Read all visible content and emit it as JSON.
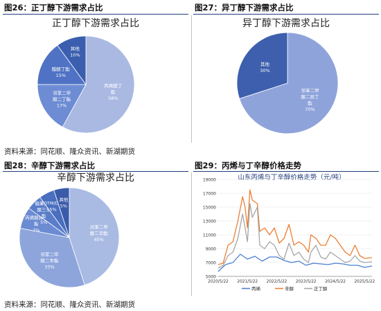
{
  "figures": [
    {
      "label": "图26：正丁醇下游需求占比"
    },
    {
      "label": "图27：异丁醇下游需求占比"
    },
    {
      "label": "图28：辛醇下游需求占比"
    },
    {
      "label": "图29：丙烯与丁辛醇价格走势"
    }
  ],
  "sources": [
    "资料来源：同花顺、隆众资讯、新湖期货",
    "资料来源：同花顺、隆众资讯、新湖期货"
  ],
  "chart_data": [
    {
      "type": "pie",
      "title": "正丁醇下游需求占比",
      "slices": [
        {
          "label": [
            "丙烯酸丁",
            "酯"
          ],
          "value": 58,
          "color": "#a9b9e2"
        },
        {
          "label": [
            "邻苯二甲",
            "酸二丁酯"
          ],
          "value": 17,
          "color": "#6d8cd4"
        },
        {
          "label": [
            "醋酸丁酯"
          ],
          "value": 15,
          "color": "#4f72c4"
        },
        {
          "label": [
            "其他"
          ],
          "value": 10,
          "color": "#3b5fae"
        }
      ]
    },
    {
      "type": "pie",
      "title": "异丁醇下游需求占比",
      "slices": [
        {
          "label": [
            "邻苯二甲",
            "酸二异丁",
            "酯"
          ],
          "value": 70,
          "color": "#8fa3db"
        },
        {
          "label": [
            "其他"
          ],
          "value": 30,
          "color": "#3d5fad"
        }
      ]
    },
    {
      "type": "pie",
      "title": "辛醇下游需求占比",
      "slices": [
        {
          "label": [
            "对苯二甲",
            "酸二辛酯"
          ],
          "value": 45,
          "color": "#aabbe3"
        },
        {
          "label": [
            "邻苯二甲",
            "酸二辛酯"
          ],
          "value": 33,
          "color": "#8ea5dc"
        },
        {
          "label": [
            "丙烯酸异辛",
            "酯"
          ],
          "value": 7,
          "color": "#6b8bd2"
        },
        {
          "label": [
            "偏苯三甲",
            "酸三辛",
            "酯"
          ],
          "value": 5,
          "color": "#5a7dc9"
        },
        {
          "label": [
            "TOTM/DOA"
          ],
          "value": 5,
          "color": "#4a6fbf"
        },
        {
          "label": [
            "其他"
          ],
          "value": 5,
          "color": "#3a5ba9"
        }
      ]
    },
    {
      "type": "line",
      "title": "山东丙烯与丁辛醇价格走势（元/吨）",
      "ylim": [
        5000,
        19000
      ],
      "yticks": [
        5000,
        7000,
        9000,
        11000,
        13000,
        15000,
        17000,
        19000
      ],
      "xticks": [
        "2020/5/22",
        "2021/5/22",
        "2022/5/22",
        "2023/5/22",
        "2024/5/22",
        "2025/5/22"
      ],
      "xlim": [
        "2020-05-22",
        "2025-08-22"
      ],
      "series": [
        {
          "name": "丙烯",
          "color": "#4a7fd0",
          "points": [
            [
              "2020-05-22",
              5700
            ],
            [
              "2020-08-22",
              6700
            ],
            [
              "2020-11-22",
              7000
            ],
            [
              "2021-02-22",
              8200
            ],
            [
              "2021-05-22",
              7500
            ],
            [
              "2021-08-22",
              7900
            ],
            [
              "2021-11-22",
              7200
            ],
            [
              "2022-02-22",
              7800
            ],
            [
              "2022-05-22",
              7800
            ],
            [
              "2022-08-22",
              7300
            ],
            [
              "2022-11-22",
              7000
            ],
            [
              "2023-02-22",
              7200
            ],
            [
              "2023-05-22",
              6600
            ],
            [
              "2023-08-22",
              6900
            ],
            [
              "2023-11-22",
              6800
            ],
            [
              "2024-02-22",
              6700
            ],
            [
              "2024-05-22",
              6900
            ],
            [
              "2024-08-22",
              6800
            ],
            [
              "2024-11-22",
              6600
            ],
            [
              "2025-02-22",
              6600
            ],
            [
              "2025-05-22",
              6300
            ],
            [
              "2025-08-22",
              6500
            ]
          ]
        },
        {
          "name": "辛醇",
          "color": "#ed7d31",
          "points": [
            [
              "2020-05-22",
              6700
            ],
            [
              "2020-07-22",
              6900
            ],
            [
              "2020-09-22",
              9500
            ],
            [
              "2020-11-22",
              10000
            ],
            [
              "2021-01-22",
              13000
            ],
            [
              "2021-03-22",
              16500
            ],
            [
              "2021-04-22",
              15000
            ],
            [
              "2021-05-22",
              12000
            ],
            [
              "2021-06-22",
              17500
            ],
            [
              "2021-07-22",
              16000
            ],
            [
              "2021-09-22",
              15500
            ],
            [
              "2021-10-22",
              11500
            ],
            [
              "2021-12-22",
              12000
            ],
            [
              "2022-02-22",
              11000
            ],
            [
              "2022-04-22",
              12000
            ],
            [
              "2022-06-22",
              9800
            ],
            [
              "2022-08-22",
              10500
            ],
            [
              "2022-10-22",
              12500
            ],
            [
              "2022-12-22",
              9500
            ],
            [
              "2023-02-22",
              10000
            ],
            [
              "2023-04-22",
              9500
            ],
            [
              "2023-06-22",
              8500
            ],
            [
              "2023-07-22",
              11000
            ],
            [
              "2023-09-22",
              10500
            ],
            [
              "2023-11-22",
              9500
            ],
            [
              "2024-01-22",
              9500
            ],
            [
              "2024-03-22",
              11000
            ],
            [
              "2024-05-22",
              10500
            ],
            [
              "2024-07-22",
              9500
            ],
            [
              "2024-09-22",
              8500
            ],
            [
              "2024-11-22",
              8000
            ],
            [
              "2025-01-22",
              9500
            ],
            [
              "2025-03-22",
              8000
            ],
            [
              "2025-05-22",
              7600
            ],
            [
              "2025-08-22",
              7700
            ]
          ]
        },
        {
          "name": "正丁醇",
          "color": "#a5a5a5",
          "points": [
            [
              "2020-05-22",
              6200
            ],
            [
              "2020-07-22",
              6600
            ],
            [
              "2020-09-22",
              8000
            ],
            [
              "2020-11-22",
              8500
            ],
            [
              "2021-01-22",
              10500
            ],
            [
              "2021-03-22",
              14000
            ],
            [
              "2021-04-22",
              12000
            ],
            [
              "2021-05-22",
              10000
            ],
            [
              "2021-06-22",
              15500
            ],
            [
              "2021-07-22",
              13500
            ],
            [
              "2021-09-22",
              15000
            ],
            [
              "2021-10-22",
              9500
            ],
            [
              "2021-12-22",
              9000
            ],
            [
              "2022-02-22",
              10000
            ],
            [
              "2022-04-22",
              9500
            ],
            [
              "2022-06-22",
              8000
            ],
            [
              "2022-08-22",
              7500
            ],
            [
              "2022-10-22",
              9800
            ],
            [
              "2022-12-22",
              8000
            ],
            [
              "2023-02-22",
              8500
            ],
            [
              "2023-04-22",
              7500
            ],
            [
              "2023-06-22",
              7000
            ],
            [
              "2023-07-22",
              8500
            ],
            [
              "2023-09-22",
              9500
            ],
            [
              "2023-11-22",
              7800
            ],
            [
              "2024-01-22",
              7500
            ],
            [
              "2024-03-22",
              8500
            ],
            [
              "2024-05-22",
              8000
            ],
            [
              "2024-07-22",
              7500
            ],
            [
              "2024-09-22",
              7000
            ],
            [
              "2024-11-22",
              7200
            ],
            [
              "2025-01-22",
              8000
            ],
            [
              "2025-03-22",
              7200
            ],
            [
              "2025-05-22",
              7000
            ],
            [
              "2025-08-22",
              7100
            ]
          ]
        }
      ]
    }
  ]
}
